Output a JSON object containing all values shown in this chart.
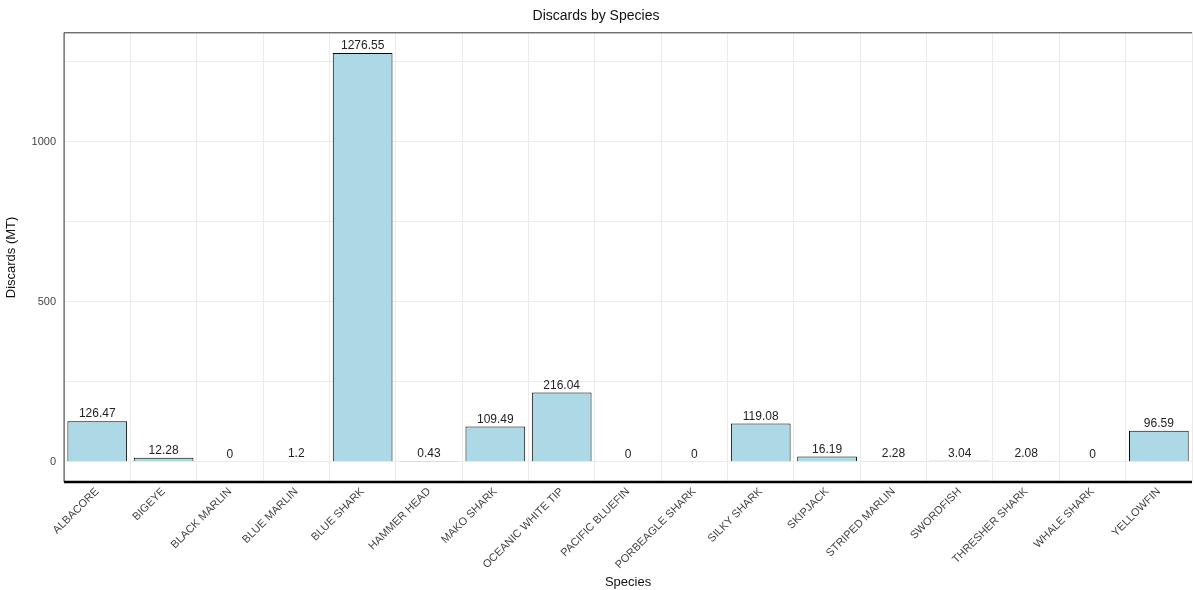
{
  "chart_data": {
    "type": "bar",
    "title": "Discards by Species",
    "xlabel": "Species",
    "ylabel": "Discards (MT)",
    "categories": [
      "ALBACORE",
      "BIGEYE",
      "BLACK MARLIN",
      "BLUE MARLIN",
      "BLUE SHARK",
      "HAMMER HEAD",
      "MAKO SHARK",
      "OCEANIC WHITE TIP",
      "PACIFIC BLUEFIN",
      "PORBEAGLE SHARK",
      "SILKY SHARK",
      "SKIPJACK",
      "STRIPED MARLIN",
      "SWORDFISH",
      "THRESHER SHARK",
      "WHALE SHARK",
      "YELLOWFIN"
    ],
    "values": [
      126.47,
      12.28,
      0,
      1.2,
      1276.55,
      0.43,
      109.49,
      216.04,
      0,
      0,
      119.08,
      16.19,
      2.28,
      3.04,
      2.08,
      0,
      96.59
    ],
    "color": "#add8e6",
    "ylim": [
      -64,
      1340
    ],
    "yticks": [
      0,
      {
        "value": 250,
        "label": null
      },
      500,
      {
        "value": 750,
        "label": null
      },
      1000,
      {
        "value": 1250,
        "label": null
      }
    ],
    "grid": true,
    "data_labels": true,
    "legend": false
  }
}
